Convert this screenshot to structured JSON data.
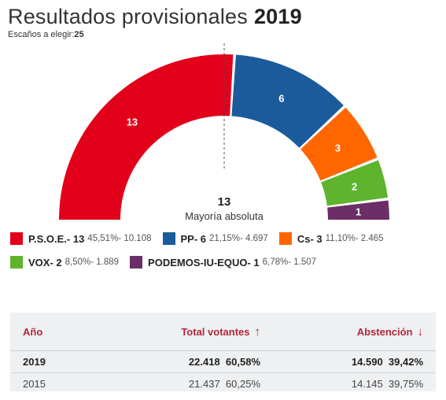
{
  "header": {
    "title": "Resultados provisionales",
    "year": "2019",
    "seats_label": "Escaños a elegir:",
    "seats_value": "25"
  },
  "majority": {
    "value": "13",
    "label": "Mayoría absoluta"
  },
  "chart_data": {
    "type": "pie",
    "subtype": "semicircle-hemicycle",
    "total_seats": 25,
    "majority": 13,
    "parties": [
      {
        "name": "P.S.O.E.",
        "seats": 13,
        "pct": "45,51%",
        "votes": "10.108",
        "color": "#e2001a"
      },
      {
        "name": "PP",
        "seats": 6,
        "pct": "21,15%",
        "votes": "4.697",
        "color": "#1b5b9c"
      },
      {
        "name": "Cs",
        "seats": 3,
        "pct": "11,10%",
        "votes": "2.465",
        "color": "#ff6600"
      },
      {
        "name": "VOX",
        "seats": 2,
        "pct": "8,50%",
        "votes": "1.889",
        "color": "#5fb42e"
      },
      {
        "name": "PODEMOS-IU-EQUO",
        "seats": 1,
        "pct": "6,78%",
        "votes": "1.507",
        "color": "#6c2e66"
      }
    ]
  },
  "legend_rows": [
    [
      0,
      1,
      2
    ],
    [
      3,
      4
    ]
  ],
  "table": {
    "col_year": "Año",
    "col_total": "Total votantes",
    "col_abst": "Abstención",
    "total_arrow": "↑",
    "abst_arrow": "↓",
    "rows": [
      {
        "year": "2019",
        "total": "22.418",
        "total_pct": "60,58%",
        "abst": "14.590",
        "abst_pct": "39,42%"
      },
      {
        "year": "2015",
        "total": "21.437",
        "total_pct": "60,25%",
        "abst": "14.145",
        "abst_pct": "39,75%"
      }
    ]
  }
}
